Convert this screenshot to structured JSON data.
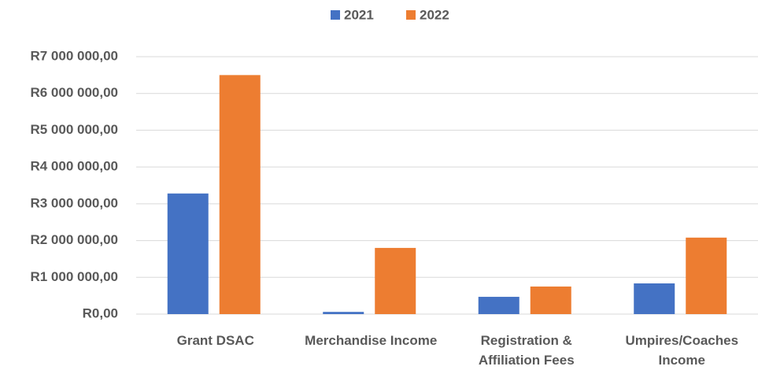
{
  "chart_data": {
    "type": "bar",
    "categories": [
      "Grant DSAC",
      "Merchandise Income",
      "Registration & Affiliation Fees",
      "Umpires/Coaches Income"
    ],
    "series": [
      {
        "name": "2021",
        "color": "#4472c4",
        "values": [
          3280000,
          60000,
          470000,
          835000
        ]
      },
      {
        "name": "2022",
        "color": "#ed7d31",
        "values": [
          6500000,
          1800000,
          750000,
          2080000
        ]
      }
    ],
    "ylim": [
      0,
      7000000
    ],
    "yticks": [
      {
        "value": 0,
        "label": "R0,00"
      },
      {
        "value": 1000000,
        "label": "R1 000 000,00"
      },
      {
        "value": 2000000,
        "label": "R2 000 000,00"
      },
      {
        "value": 3000000,
        "label": "R3 000 000,00"
      },
      {
        "value": 4000000,
        "label": "R4 000 000,00"
      },
      {
        "value": 5000000,
        "label": "R5 000 000,00"
      },
      {
        "value": 6000000,
        "label": "R6 000 000,00"
      },
      {
        "value": 7000000,
        "label": "R7 000 000,00"
      }
    ],
    "grid": true,
    "legend": "top"
  }
}
